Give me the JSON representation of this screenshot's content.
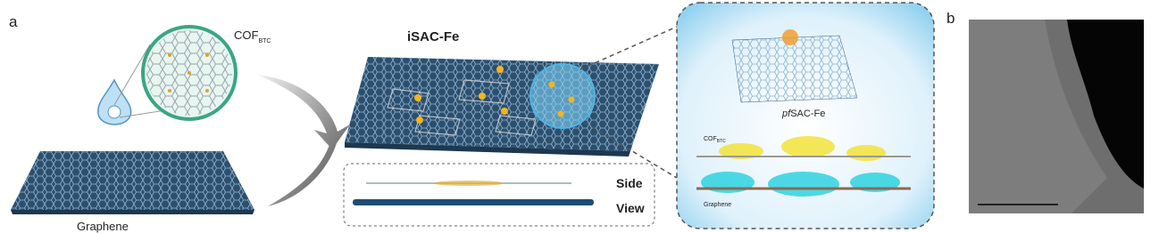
{
  "panel_a": {
    "label": "a",
    "cof_label": {
      "main": "COF",
      "sub": "BTC"
    },
    "graphene_label": "Graphene",
    "title": "iSAC-Fe",
    "side_view": [
      "Side",
      "View"
    ],
    "inset": {
      "structure_label": {
        "italic": "pf",
        "rest": "SAC-Fe"
      },
      "cof_label": {
        "main": "COF",
        "sub": "BTC"
      },
      "graphene_label": "Graphene"
    }
  },
  "panel_b": {
    "label": "b"
  }
}
